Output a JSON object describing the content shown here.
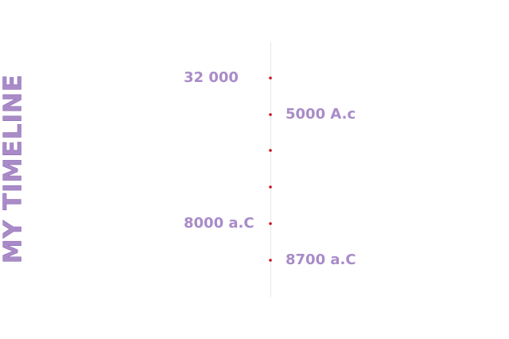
{
  "header": {
    "title": "MY TIMELINE"
  },
  "timeline": {
    "events": [
      "32 000",
      "5000 A.c",
      "8000 a.C",
      "8700 a.C"
    ]
  }
}
